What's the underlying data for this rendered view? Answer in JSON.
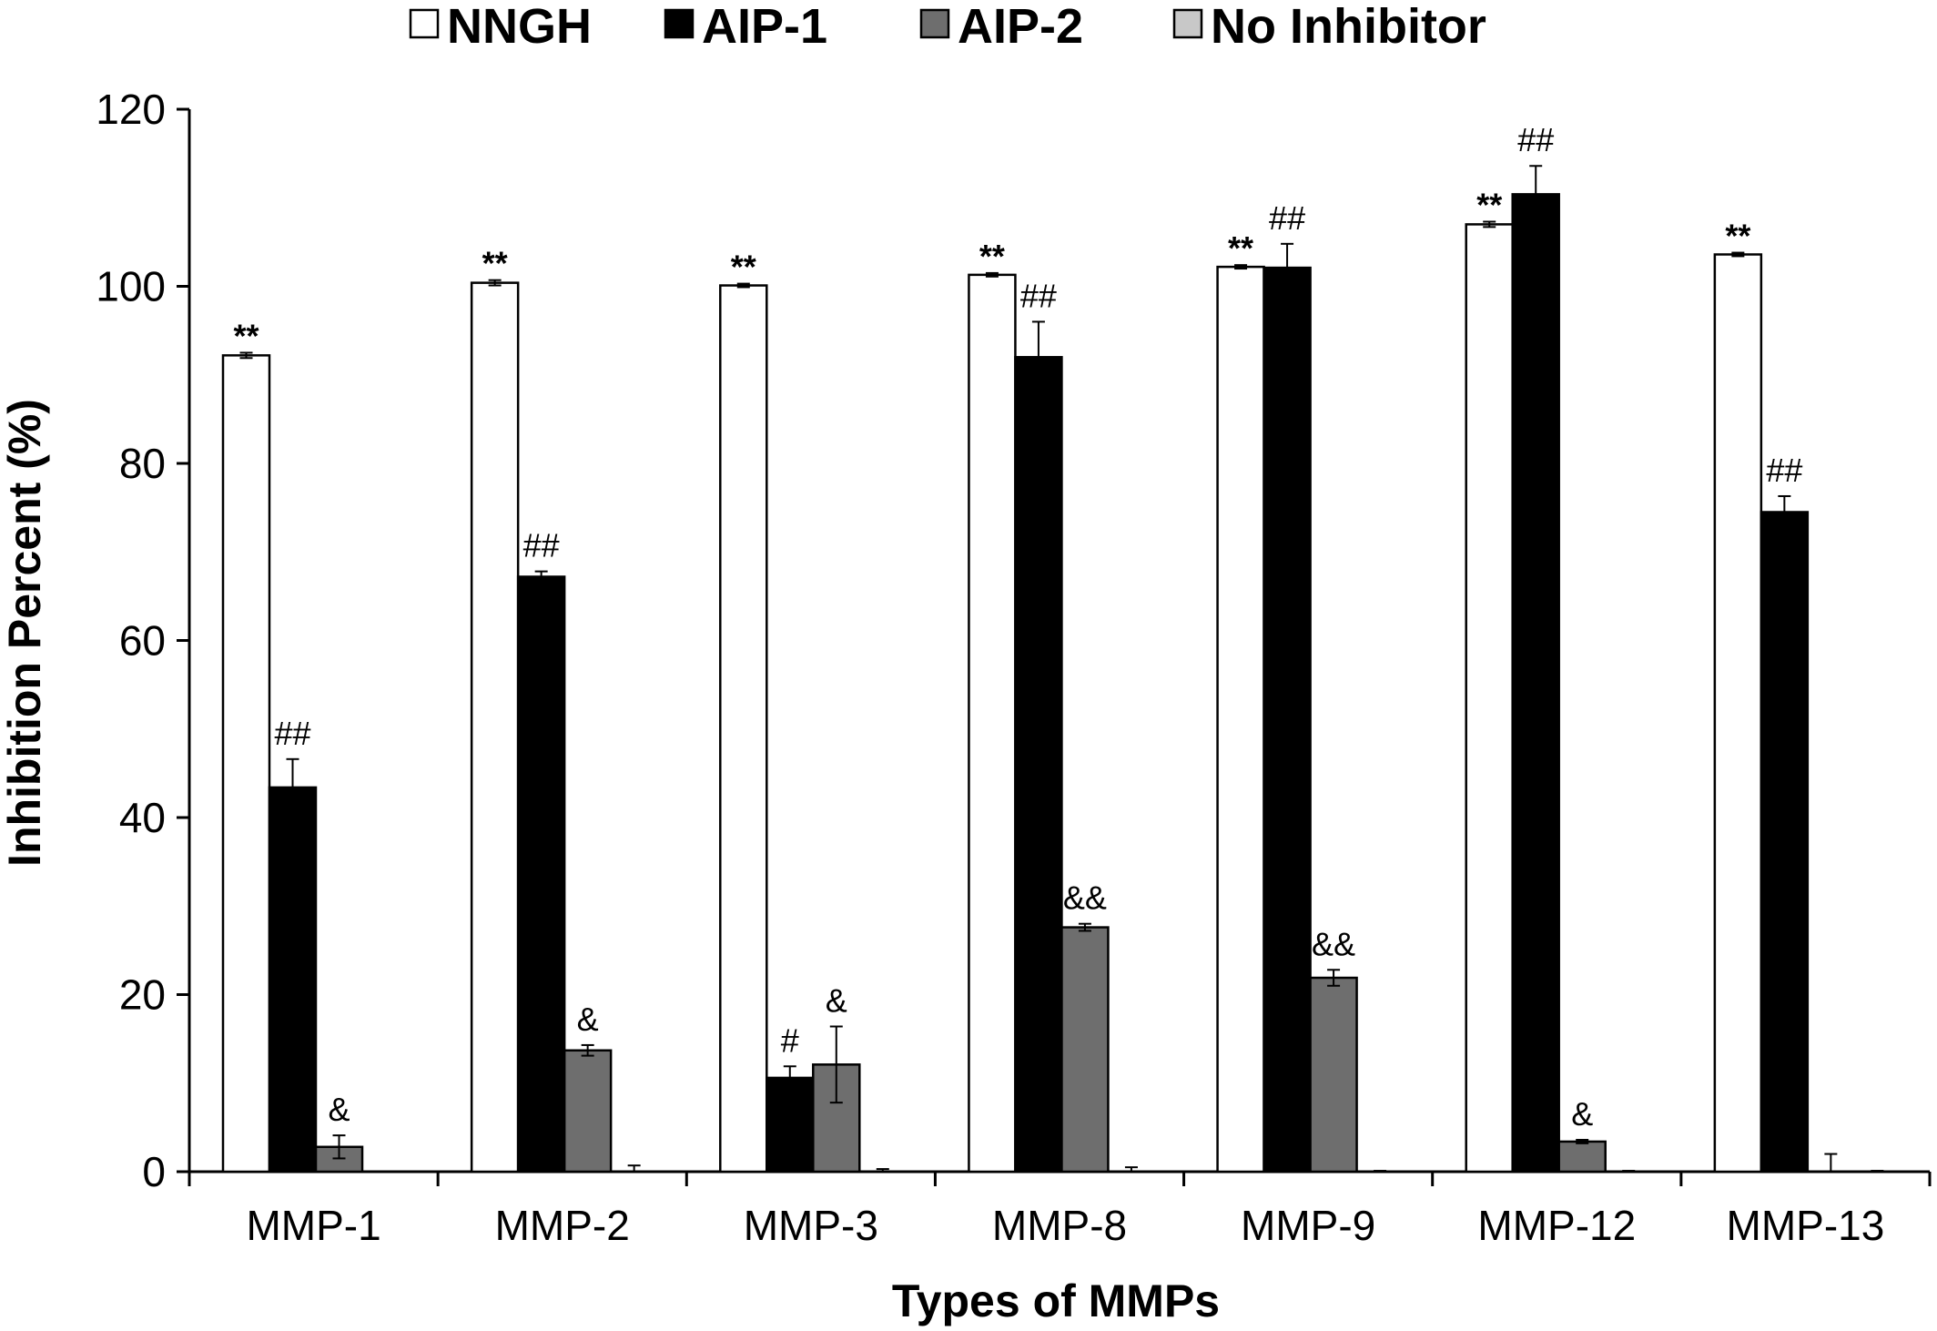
{
  "chart_data": {
    "type": "bar",
    "title": "",
    "xlabel": "Types of MMPs",
    "ylabel": "Inhibition Percent (%)",
    "ylim": [
      0,
      120
    ],
    "yticks": [
      "0",
      "20",
      "40",
      "60",
      "80",
      "100",
      "120"
    ],
    "grid": false,
    "legend_position": "top",
    "categories": [
      "MMP-1",
      "MMP-2",
      "MMP-3",
      "MMP-8",
      "MMP-9",
      "MMP-12",
      "MMP-13"
    ],
    "series": [
      {
        "name": "NNGH",
        "color": "#ffffff",
        "values": [
          92.2,
          100.4,
          100.1,
          101.3,
          102.2,
          107.0,
          103.6
        ],
        "errors": [
          0.3,
          0.3,
          0.2,
          0.2,
          0.2,
          0.3,
          0.2
        ],
        "annotations": [
          "**",
          "**",
          "**",
          "**",
          "**",
          "**",
          "**"
        ]
      },
      {
        "name": "AIP-1",
        "color": "#000000",
        "values": [
          43.4,
          67.2,
          10.6,
          92.0,
          102.1,
          110.4,
          74.5
        ],
        "errors": [
          3.2,
          0.6,
          1.3,
          4.0,
          2.7,
          3.2,
          1.8
        ],
        "annotations": [
          "##",
          "##",
          "#",
          "##",
          "##",
          "##",
          "##"
        ]
      },
      {
        "name": "AIP-2",
        "color": "#6e6e6e",
        "values": [
          2.8,
          13.7,
          12.1,
          27.6,
          21.9,
          3.4,
          0
        ],
        "errors": [
          1.3,
          0.6,
          4.3,
          0.4,
          0.9,
          0.2,
          2.0
        ],
        "annotations": [
          "&",
          "&",
          "&",
          "&&",
          "&&",
          "&",
          ""
        ]
      },
      {
        "name": "No Inhibitor",
        "color": "#c8c8c8",
        "values": [
          0,
          0,
          0,
          0,
          0,
          0,
          0
        ],
        "errors": [
          0,
          0.7,
          0.3,
          0.5,
          0.1,
          0.1,
          0.1
        ],
        "annotations": [
          "",
          "",
          "",
          "",
          "",
          "",
          ""
        ]
      }
    ]
  }
}
